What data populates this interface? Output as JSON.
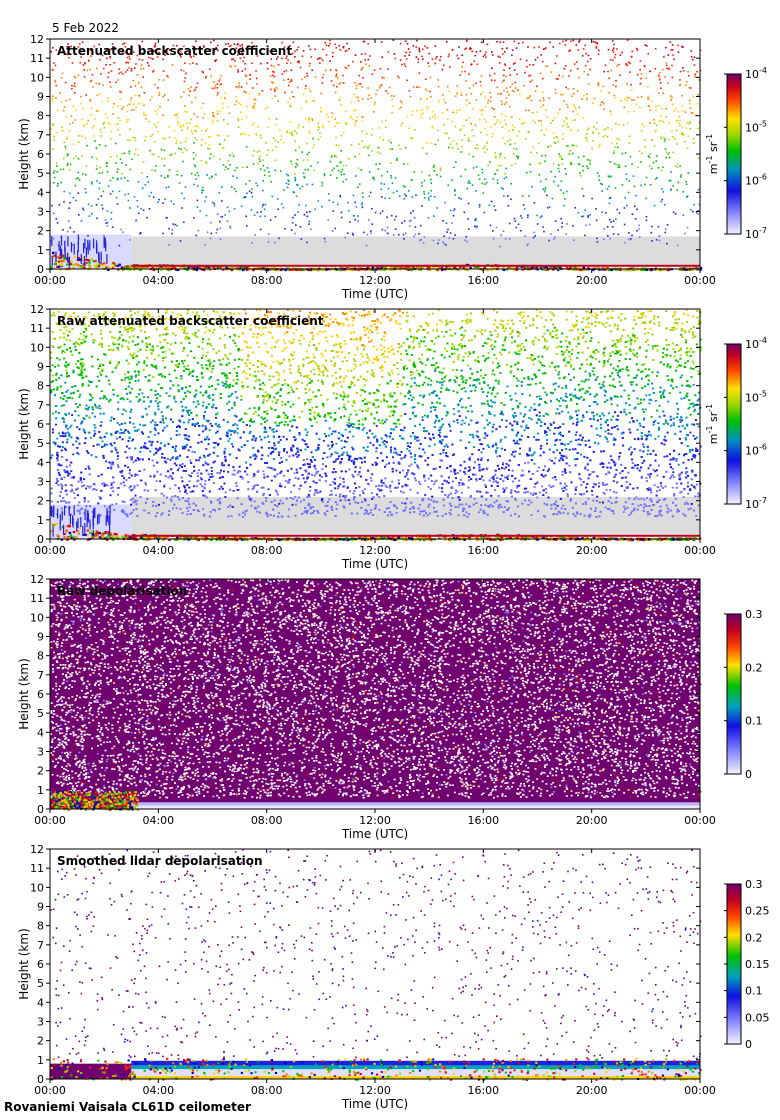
{
  "date": "5 Feb 2022",
  "footer": "Rovaniemi Vaisala CL61D ceilometer",
  "chart_data": [
    {
      "type": "heatmap",
      "title": "Attenuated backscatter coefficient",
      "xlabel": "Time (UTC)",
      "ylabel": "Height (km)",
      "x_ticks": [
        "00:00",
        "04:00",
        "08:00",
        "12:00",
        "16:00",
        "20:00",
        "00:00"
      ],
      "y_ticks": [
        "0",
        "1",
        "2",
        "3",
        "4",
        "5",
        "6",
        "7",
        "8",
        "9",
        "10",
        "11",
        "12"
      ],
      "xlim": [
        0,
        24
      ],
      "ylim": [
        0,
        12
      ],
      "colorbar": {
        "scale": "log",
        "range": [
          1e-07,
          0.0001
        ],
        "ticks": [
          {
            "base": "10",
            "exp": "-7",
            "value": 1e-07
          },
          {
            "base": "10",
            "exp": "-6",
            "value": 1e-06
          },
          {
            "base": "10",
            "exp": "-5",
            "value": 1e-05
          },
          {
            "base": "10",
            "exp": "-4",
            "value": 0.0001
          }
        ],
        "unit": {
          "m": "m",
          "m_exp": "-1",
          "sr": "sr",
          "sr_exp": "-1"
        }
      }
    },
    {
      "type": "heatmap",
      "title": "Raw attenuated backscatter coefficient",
      "xlabel": "Time (UTC)",
      "ylabel": "Height (km)",
      "x_ticks": [
        "00:00",
        "04:00",
        "08:00",
        "12:00",
        "16:00",
        "20:00",
        "00:00"
      ],
      "y_ticks": [
        "0",
        "1",
        "2",
        "3",
        "4",
        "5",
        "6",
        "7",
        "8",
        "9",
        "10",
        "11",
        "12"
      ],
      "xlim": [
        0,
        24
      ],
      "ylim": [
        0,
        12
      ],
      "colorbar": {
        "scale": "log",
        "range": [
          1e-07,
          0.0001
        ],
        "ticks": [
          {
            "base": "10",
            "exp": "-7",
            "value": 1e-07
          },
          {
            "base": "10",
            "exp": "-6",
            "value": 1e-06
          },
          {
            "base": "10",
            "exp": "-5",
            "value": 1e-05
          },
          {
            "base": "10",
            "exp": "-4",
            "value": 0.0001
          }
        ],
        "unit": {
          "m": "m",
          "m_exp": "-1",
          "sr": "sr",
          "sr_exp": "-1"
        }
      }
    },
    {
      "type": "heatmap",
      "title": "Raw depolarisation",
      "xlabel": "Time (UTC)",
      "ylabel": "Height (km)",
      "x_ticks": [
        "00:00",
        "04:00",
        "08:00",
        "12:00",
        "16:00",
        "20:00",
        "00:00"
      ],
      "y_ticks": [
        "0",
        "1",
        "2",
        "3",
        "4",
        "5",
        "6",
        "7",
        "8",
        "9",
        "10",
        "11",
        "12"
      ],
      "xlim": [
        0,
        24
      ],
      "ylim": [
        0,
        12
      ],
      "colorbar": {
        "scale": "linear",
        "range": [
          0,
          0.3
        ],
        "ticks": [
          {
            "label": "0",
            "value": 0
          },
          {
            "label": "0.1",
            "value": 0.1
          },
          {
            "label": "0.2",
            "value": 0.2
          },
          {
            "label": "0.3",
            "value": 0.3
          }
        ]
      }
    },
    {
      "type": "heatmap",
      "title": "Smoothed lidar depolarisation",
      "xlabel": "Time (UTC)",
      "ylabel": "Height (km)",
      "x_ticks": [
        "00:00",
        "04:00",
        "08:00",
        "12:00",
        "16:00",
        "20:00",
        "00:00"
      ],
      "y_ticks": [
        "0",
        "1",
        "2",
        "3",
        "4",
        "5",
        "6",
        "7",
        "8",
        "9",
        "10",
        "11",
        "12"
      ],
      "xlim": [
        0,
        24
      ],
      "ylim": [
        0,
        12
      ],
      "colorbar": {
        "scale": "linear",
        "range": [
          0,
          0.3
        ],
        "ticks": [
          {
            "label": "0",
            "value": 0
          },
          {
            "label": "0.05",
            "value": 0.05
          },
          {
            "label": "0.1",
            "value": 0.1
          },
          {
            "label": "0.15",
            "value": 0.15
          },
          {
            "label": "0.2",
            "value": 0.2
          },
          {
            "label": "0.25",
            "value": 0.25
          },
          {
            "label": "0.3",
            "value": 0.3
          }
        ]
      }
    }
  ]
}
